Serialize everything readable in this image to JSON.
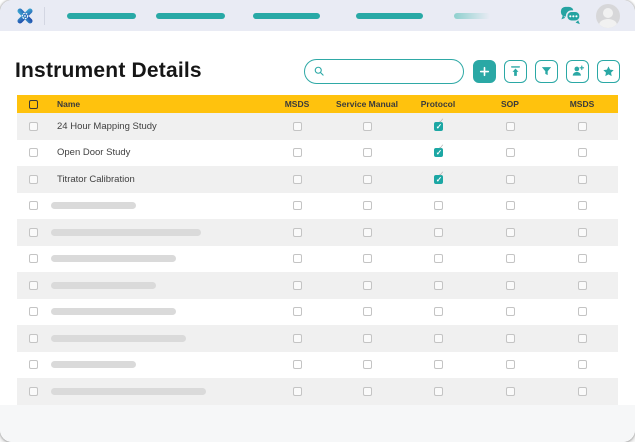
{
  "topbar": {
    "logo": "app-logo",
    "nav_pills": [
      {
        "width": 69,
        "faded": false
      },
      {
        "width": 69,
        "faded": false
      },
      {
        "width": 67,
        "faded": false
      },
      {
        "width": 67,
        "faded": false
      },
      {
        "width": 36,
        "faded": true
      }
    ],
    "right_icons": [
      "chat-bubbles-icon",
      "user-avatar"
    ]
  },
  "header": {
    "title": "Instrument Details",
    "search": {
      "value": "",
      "placeholder": ""
    },
    "actions": [
      {
        "id": "add",
        "icon": "plus-icon",
        "style": "solid"
      },
      {
        "id": "upload",
        "icon": "upload-icon",
        "style": "outline"
      },
      {
        "id": "filter",
        "icon": "filter-funnel-icon",
        "style": "outline"
      },
      {
        "id": "add-user",
        "icon": "person-add-icon",
        "style": "outline"
      },
      {
        "id": "favorite",
        "icon": "star-icon",
        "style": "outline"
      }
    ]
  },
  "table": {
    "columns": [
      "Name",
      "MSDS",
      "Service Manual",
      "Protocol",
      "SOP",
      "MSDS"
    ],
    "header_select_all_checked": false,
    "rows": [
      {
        "name": "24 Hour Mapping Study",
        "selected": false,
        "checks": [
          false,
          false,
          true,
          false,
          false
        ]
      },
      {
        "name": "Open Door Study",
        "selected": false,
        "checks": [
          false,
          false,
          true,
          false,
          false
        ]
      },
      {
        "name": "Titrator Calibration",
        "selected": false,
        "checks": [
          false,
          false,
          true,
          false,
          false
        ]
      },
      {
        "placeholder_width": 85,
        "selected": false,
        "checks": [
          false,
          false,
          false,
          false,
          false
        ]
      },
      {
        "placeholder_width": 150,
        "selected": false,
        "checks": [
          false,
          false,
          false,
          false,
          false
        ]
      },
      {
        "placeholder_width": 125,
        "selected": false,
        "checks": [
          false,
          false,
          false,
          false,
          false
        ]
      },
      {
        "placeholder_width": 105,
        "selected": false,
        "checks": [
          false,
          false,
          false,
          false,
          false
        ]
      },
      {
        "placeholder_width": 125,
        "selected": false,
        "checks": [
          false,
          false,
          false,
          false,
          false
        ]
      },
      {
        "placeholder_width": 135,
        "selected": false,
        "checks": [
          false,
          false,
          false,
          false,
          false
        ]
      },
      {
        "placeholder_width": 85,
        "selected": false,
        "checks": [
          false,
          false,
          false,
          false,
          false
        ]
      },
      {
        "placeholder_width": 155,
        "selected": false,
        "checks": [
          false,
          false,
          false,
          false,
          false
        ]
      }
    ]
  },
  "colors": {
    "teal": "#2AA8A5",
    "checked_teal": "#1CA7A4",
    "header_yellow": "#FFC20D",
    "topbar_bg": "#E9EBF4",
    "row_alt": "#F0F0F0",
    "bottom_strip": "#F6F7F8"
  }
}
